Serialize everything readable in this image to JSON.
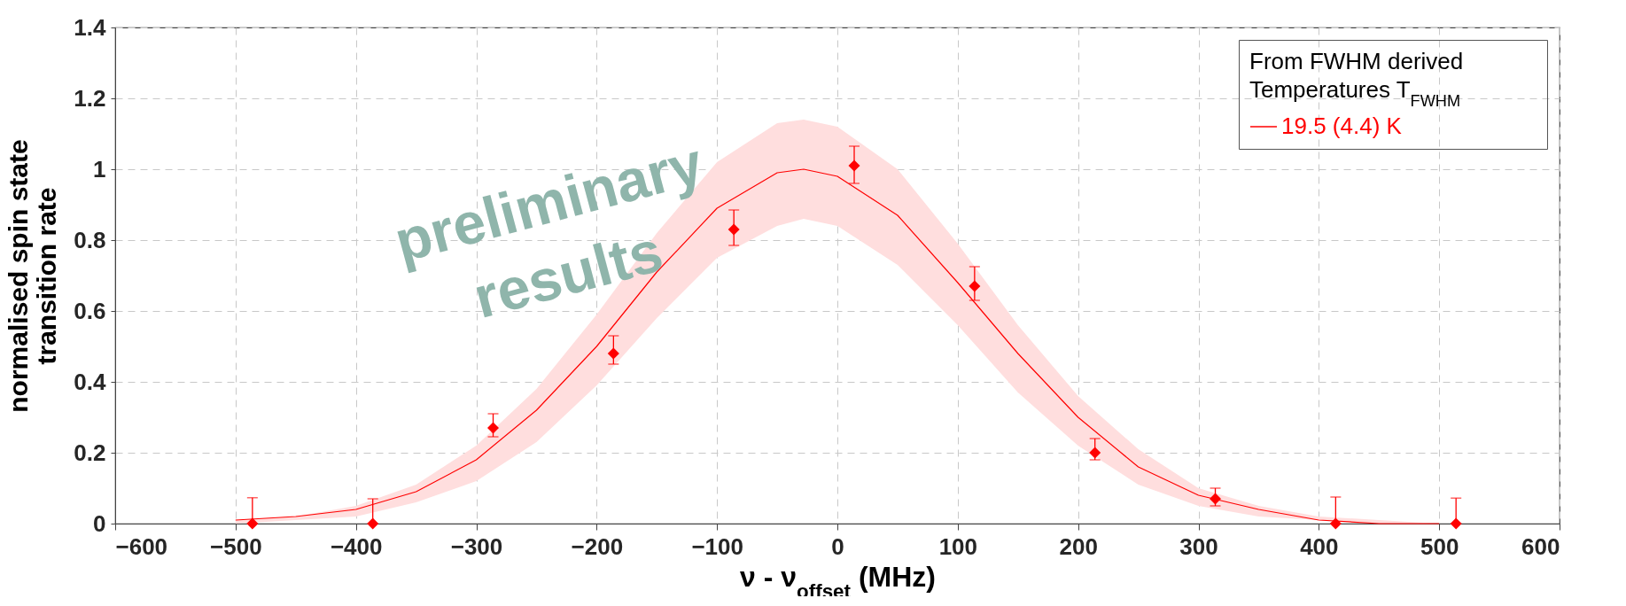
{
  "chart_data": {
    "type": "scatter",
    "xlabel": "ν - ν$_{offset}$ (MHz)",
    "ylabel": "normalised spin state\ntransition rate",
    "legend_title": "From FWHM derived\nTemperatures T$_{FWHM}$",
    "legend": "top right",
    "grid": true,
    "xlim": [
      -600,
      600
    ],
    "xticks": [
      -600,
      -500,
      -400,
      -300,
      -200,
      -100,
      0,
      100,
      200,
      300,
      400,
      500,
      600
    ],
    "ylim": [
      0,
      1.4
    ],
    "yticks": [
      0,
      0.2,
      0.4,
      0.6,
      0.8,
      1,
      1.2,
      1.4
    ],
    "annotations": [
      "preliminary\nresults"
    ],
    "series": [
      {
        "type": "line",
        "name": "19.5 (4.4) K",
        "color": "#ff0000",
        "line_style": "solid",
        "x": [
          -500,
          -450,
          -400,
          -350,
          -300,
          -250,
          -200,
          -150,
          -100,
          -50,
          -28,
          0,
          50,
          100,
          150,
          200,
          250,
          300,
          350,
          400,
          450,
          500
        ],
        "values": [
          0.01,
          0.02,
          0.04,
          0.09,
          0.18,
          0.32,
          0.5,
          0.71,
          0.89,
          0.99,
          1,
          0.98,
          0.87,
          0.68,
          0.48,
          0.3,
          0.16,
          0.08,
          0.04,
          0.01,
          0,
          0
        ],
        "lower": [
          0,
          0.01,
          0.02,
          0.06,
          0.12,
          0.23,
          0.39,
          0.58,
          0.75,
          0.84,
          0.86,
          0.84,
          0.73,
          0.56,
          0.37,
          0.22,
          0.11,
          0.05,
          0.02,
          0.01,
          0,
          0
        ],
        "upper": [
          0.01,
          0.02,
          0.05,
          0.11,
          0.22,
          0.38,
          0.59,
          0.82,
          1.02,
          1.13,
          1.14,
          1.12,
          1,
          0.79,
          0.56,
          0.36,
          0.21,
          0.1,
          0.05,
          0.02,
          0.01,
          0
        ]
      },
      {
        "color": "#ff0000",
        "marker": "diamond",
        "x": [
          -486,
          -386,
          -286,
          -186,
          -86,
          14,
          114,
          214,
          314,
          414,
          514
        ],
        "values": [
          0,
          0,
          0.27,
          0.48,
          0.83,
          1.01,
          0.67,
          0.2,
          0.07,
          0,
          0
        ],
        "errors": [
          [
            0,
            0.073
          ],
          [
            0,
            0.07
          ],
          [
            0.245,
            0.31
          ],
          [
            0.45,
            0.53
          ],
          [
            0.785,
            0.885
          ],
          [
            0.96,
            1.065
          ],
          [
            0.63,
            0.725
          ],
          [
            0.18,
            0.24
          ],
          [
            0.05,
            0.1
          ],
          [
            0,
            0.075
          ],
          [
            0,
            0.072
          ]
        ]
      }
    ]
  }
}
